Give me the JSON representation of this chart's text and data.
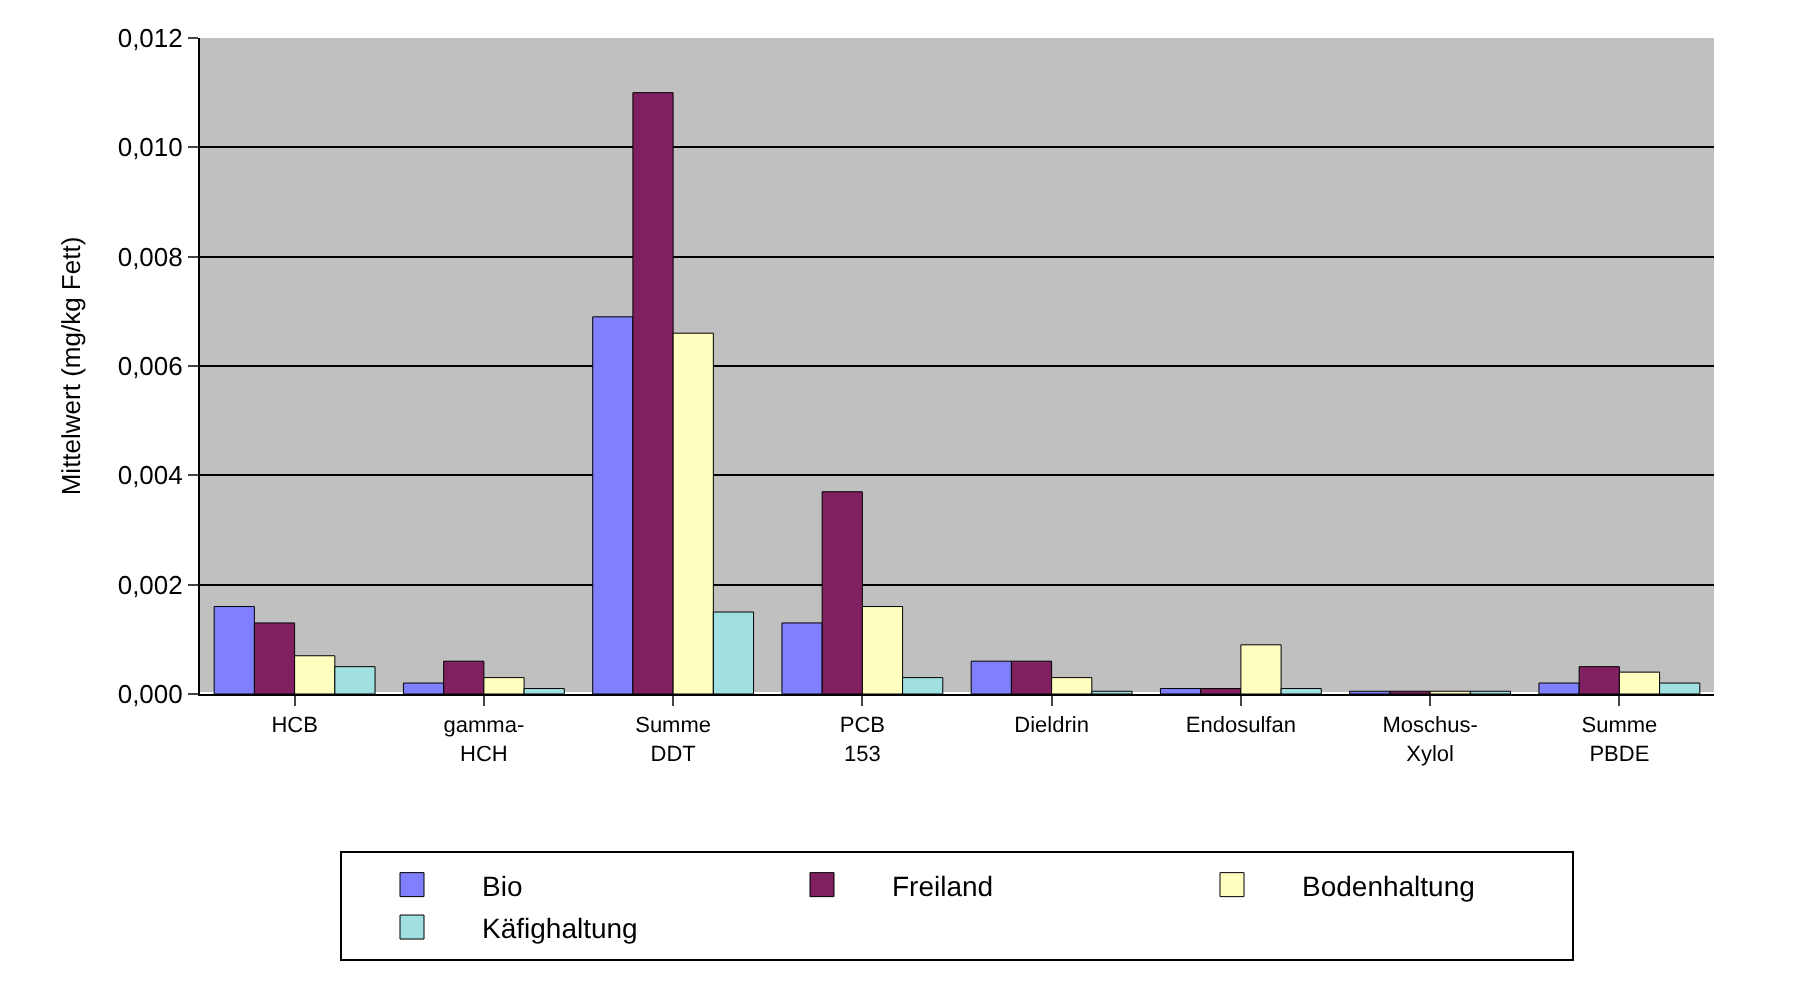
{
  "chart_data": {
    "type": "bar",
    "ylabel": "Mittelwert (mg/kg Fett)",
    "categories": [
      "HCB",
      "gamma-\nHCH",
      "Summe\nDDT",
      "PCB\n153",
      "Dieldrin",
      "Endosulfan",
      "Moschus-\nXylol",
      "Summe\nPBDE"
    ],
    "series": [
      {
        "name": "Bio",
        "color": "#8080ff",
        "values": [
          0.0016,
          0.0002,
          0.0069,
          0.0013,
          0.0006,
          0.0001,
          5e-05,
          0.0002
        ]
      },
      {
        "name": "Freiland",
        "color": "#802060",
        "values": [
          0.0013,
          0.0006,
          0.011,
          0.0037,
          0.0006,
          0.0001,
          5e-05,
          0.0005
        ]
      },
      {
        "name": "Bodenhaltung",
        "color": "#ffffc0",
        "values": [
          0.0007,
          0.0003,
          0.0066,
          0.0016,
          0.0003,
          0.0009,
          5e-05,
          0.0004
        ]
      },
      {
        "name": "Käfighaltung",
        "color": "#a0e0e0",
        "values": [
          0.0005,
          0.0001,
          0.0015,
          0.0003,
          5e-05,
          0.0001,
          5e-05,
          0.0002
        ]
      }
    ],
    "ylim": [
      0,
      0.012
    ],
    "yticks": [
      {
        "value": 0,
        "label": "0,000"
      },
      {
        "value": 0.002,
        "label": "0,002"
      },
      {
        "value": 0.004,
        "label": "0,004"
      },
      {
        "value": 0.006,
        "label": "0,006"
      },
      {
        "value": 0.008,
        "label": "0,008"
      },
      {
        "value": 0.01,
        "label": "0,010"
      },
      {
        "value": 0.012,
        "label": "0,012"
      }
    ],
    "grid": "y",
    "legend": "bottom"
  }
}
